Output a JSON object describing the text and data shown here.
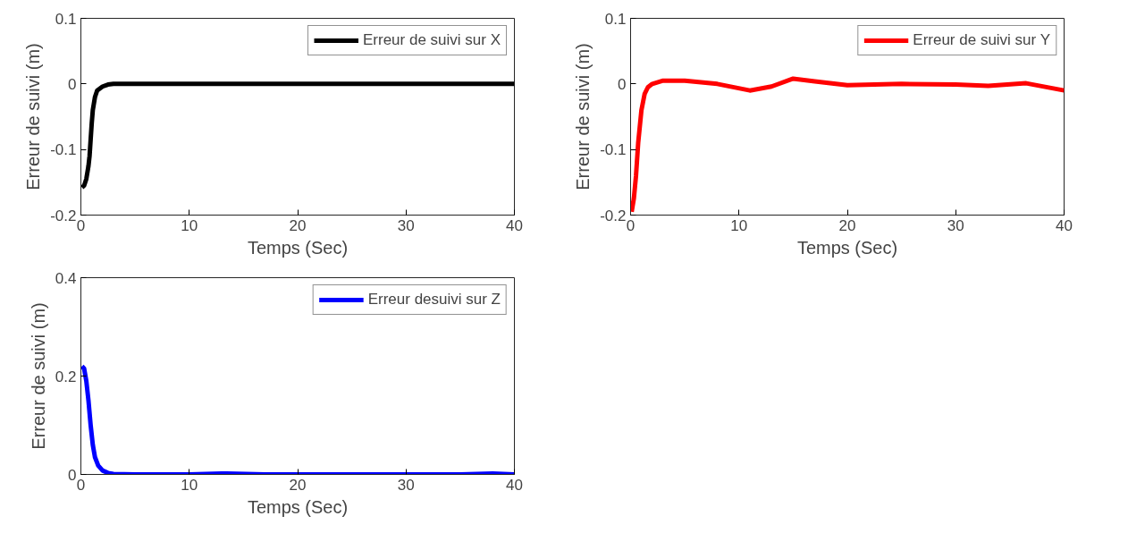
{
  "chart_data": [
    {
      "type": "line",
      "xlabel": "Temps (Sec)",
      "ylabel": "Erreur de suivi (m)",
      "xlim": [
        0,
        40
      ],
      "ylim": [
        -0.2,
        0.1
      ],
      "xticks": [
        0,
        10,
        20,
        30,
        40
      ],
      "yticks": [
        -0.2,
        -0.1,
        0,
        0.1
      ],
      "grid": false,
      "legend": "top right",
      "series": [
        {
          "name": "Erreur de suivi sur X",
          "color": "#000000",
          "x": [
            0.1,
            0.3,
            0.5,
            0.7,
            0.8,
            0.9,
            1.0,
            1.1,
            1.3,
            1.5,
            2.0,
            2.5,
            3,
            4,
            6,
            10,
            20,
            30,
            40
          ],
          "values": [
            -0.158,
            -0.155,
            -0.145,
            -0.125,
            -0.11,
            -0.085,
            -0.06,
            -0.04,
            -0.02,
            -0.01,
            -0.004,
            -0.001,
            0,
            0,
            0,
            0,
            0,
            0,
            0
          ]
        }
      ]
    },
    {
      "type": "line",
      "xlabel": "Temps (Sec)",
      "ylabel": "Erreur de suivi (m)",
      "xlim": [
        0,
        40
      ],
      "ylim": [
        -0.2,
        0.1
      ],
      "xticks": [
        0,
        10,
        20,
        30,
        40
      ],
      "yticks": [
        -0.2,
        -0.1,
        0,
        0.1
      ],
      "grid": false,
      "legend": "top right",
      "series": [
        {
          "name": "Erreur de suivi sur Y",
          "color": "#ff0000",
          "x": [
            0.1,
            0.3,
            0.5,
            0.7,
            1.0,
            1.3,
            1.6,
            2,
            3,
            5,
            8,
            11,
            13,
            15,
            17,
            20,
            25,
            30,
            33,
            36.5,
            40
          ],
          "values": [
            -0.195,
            -0.175,
            -0.14,
            -0.09,
            -0.04,
            -0.015,
            -0.005,
            0.0,
            0.005,
            0.005,
            0,
            -0.01,
            -0.004,
            0.008,
            0.004,
            -0.002,
            0,
            -0.001,
            -0.003,
            0.001,
            -0.01
          ]
        }
      ]
    },
    {
      "type": "line",
      "xlabel": "Temps (Sec)",
      "ylabel": "Erreur de suivi (m)",
      "xlim": [
        0,
        40
      ],
      "ylim": [
        0,
        0.4
      ],
      "xticks": [
        0,
        10,
        20,
        30,
        40
      ],
      "yticks": [
        0,
        0.2,
        0.4
      ],
      "grid": false,
      "legend": "top right",
      "series": [
        {
          "name": "Erreur desuivi sur Z",
          "color": "#0000ff",
          "x": [
            0.1,
            0.3,
            0.5,
            0.7,
            0.9,
            1.1,
            1.3,
            1.6,
            2,
            2.5,
            3,
            5,
            10,
            13,
            17,
            20,
            25,
            30,
            35,
            38,
            40
          ],
          "values": [
            0.22,
            0.215,
            0.19,
            0.15,
            0.1,
            0.06,
            0.035,
            0.018,
            0.008,
            0.003,
            0.001,
            0,
            0,
            0.002,
            0,
            0,
            0,
            0,
            0,
            0.002,
            0.0
          ]
        }
      ]
    }
  ]
}
